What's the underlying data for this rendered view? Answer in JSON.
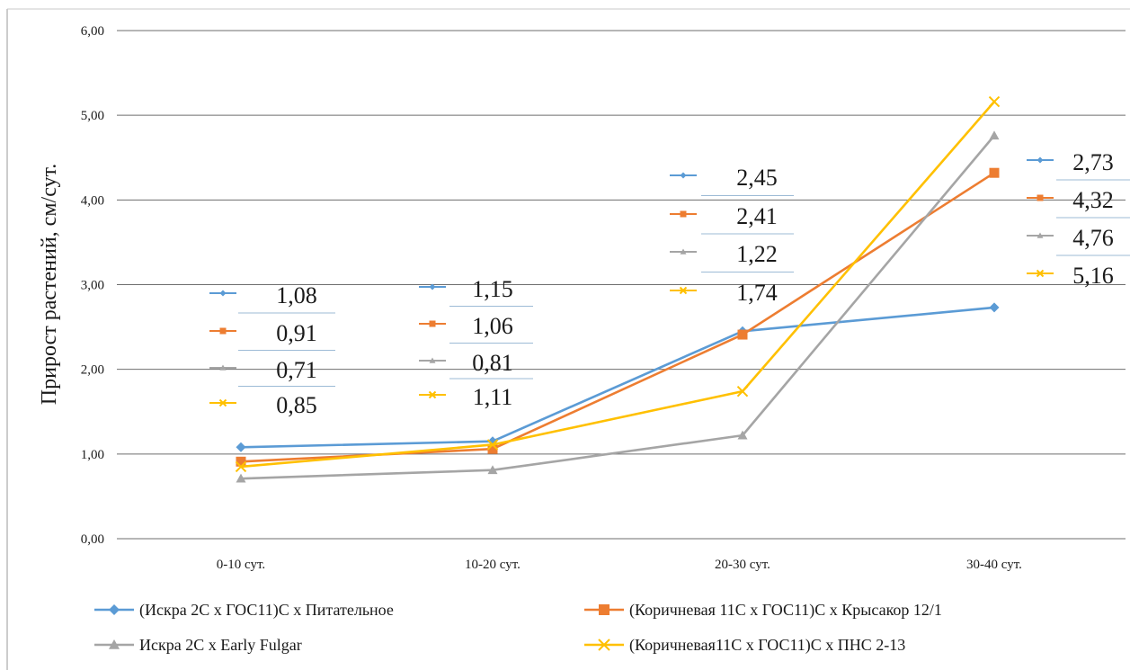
{
  "chart_data": {
    "type": "line",
    "title": "",
    "xlabel": "",
    "ylabel": "Прирост растений, см/сут.",
    "categories": [
      "0-10 сут.",
      "10-20 сут.",
      "20-30 сут.",
      "30-40 сут."
    ],
    "ylim": [
      0,
      6
    ],
    "yticks": [
      "0,00",
      "1,00",
      "2,00",
      "3,00",
      "4,00",
      "5,00",
      "6,00"
    ],
    "grid": true,
    "legend_position": "bottom",
    "series": [
      {
        "name": "(Искра 2С х ГОС11)С х Питательное",
        "values": [
          1.08,
          1.15,
          2.45,
          2.73
        ],
        "labels": [
          "1,08",
          "1,15",
          "2,45",
          "2,73"
        ],
        "color": "#5b9bd5",
        "marker": "diamond"
      },
      {
        "name": "(Коричневая 11С х ГОС11)С х Крысакор 12/1",
        "values": [
          0.91,
          1.06,
          2.41,
          4.32
        ],
        "labels": [
          "0,91",
          "1,06",
          "2,41",
          "4,32"
        ],
        "color": "#ed7d31",
        "marker": "square"
      },
      {
        "name": "Искра 2С х Early Fulgar",
        "values": [
          0.71,
          0.81,
          1.22,
          4.76
        ],
        "labels": [
          "0,71",
          "0,81",
          "1,22",
          "4,76"
        ],
        "color": "#a5a5a5",
        "marker": "triangle"
      },
      {
        "name": "(Коричневая11С х ГОС11)С х ПНС 2-13",
        "values": [
          0.85,
          1.11,
          1.74,
          5.16
        ],
        "labels": [
          "0,85",
          "1,11",
          "1,74",
          "5,16"
        ],
        "color": "#ffc000",
        "marker": "x"
      }
    ]
  }
}
